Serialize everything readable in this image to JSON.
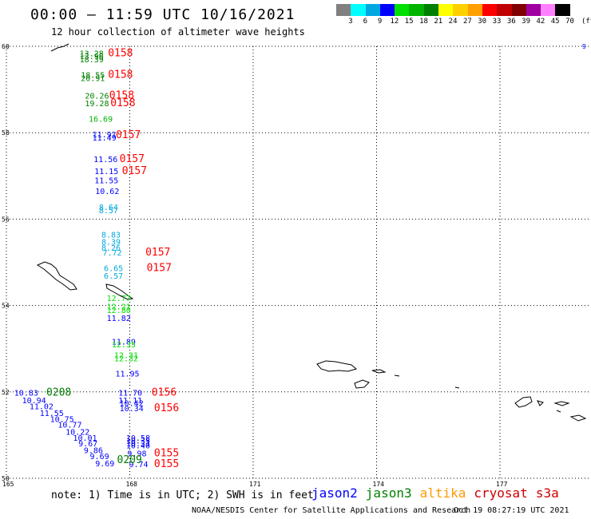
{
  "header": {
    "title": "00:00 — 11:59 UTC 10/16/2021",
    "subtitle": "12 hour collection of altimeter wave heights"
  },
  "legend": {
    "unit": "(ft)",
    "bins": [
      {
        "label": "3",
        "color": "#808080"
      },
      {
        "label": "6",
        "color": "#00ffff"
      },
      {
        "label": "9",
        "color": "#00a8e0"
      },
      {
        "label": "12",
        "color": "#0000ff"
      },
      {
        "label": "15",
        "color": "#00e000"
      },
      {
        "label": "18",
        "color": "#00b400"
      },
      {
        "label": "21",
        "color": "#008000"
      },
      {
        "label": "24",
        "color": "#ffff00"
      },
      {
        "label": "27",
        "color": "#ffd000"
      },
      {
        "label": "30",
        "color": "#ffa000"
      },
      {
        "label": "33",
        "color": "#ff0000"
      },
      {
        "label": "36",
        "color": "#c00000"
      },
      {
        "label": "39",
        "color": "#800000"
      },
      {
        "label": "42",
        "color": "#a000a0"
      },
      {
        "label": "45",
        "color": "#ff80ff"
      },
      {
        "label": "70",
        "color": "#000000"
      }
    ]
  },
  "map": {
    "lat_ticks": [
      "60",
      "58",
      "56",
      "54",
      "52",
      "50"
    ],
    "lon_ticks": [
      "165",
      "168",
      "171",
      "174",
      "177"
    ],
    "corner_label": "9"
  },
  "observations": [
    {
      "text": "13.28",
      "lon": 166.78,
      "lat": 59.77,
      "color": "#008000"
    },
    {
      "text": "13.96",
      "lon": 166.78,
      "lat": 59.7,
      "color": "#008000"
    },
    {
      "text": "18.39",
      "lon": 166.78,
      "lat": 59.63,
      "color": "#008000"
    },
    {
      "text": "18.55",
      "lon": 166.81,
      "lat": 59.27,
      "color": "#008000"
    },
    {
      "text": "20.91",
      "lon": 166.81,
      "lat": 59.2,
      "color": "#008000"
    },
    {
      "text": "20.26",
      "lon": 166.91,
      "lat": 58.79,
      "color": "#008000"
    },
    {
      "text": "19.28",
      "lon": 166.91,
      "lat": 58.61,
      "color": "#008000"
    },
    {
      "text": "16.69",
      "lon": 167.0,
      "lat": 58.25,
      "color": "#00b400"
    },
    {
      "text": "11.91",
      "lon": 167.09,
      "lat": 57.89,
      "color": "#0000ff"
    },
    {
      "text": "11.49",
      "lon": 167.09,
      "lat": 57.82,
      "color": "#0000ff"
    },
    {
      "text": "11.56",
      "lon": 167.12,
      "lat": 57.32,
      "color": "#0000ff"
    },
    {
      "text": "11.15",
      "lon": 167.14,
      "lat": 57.04,
      "color": "#0000ff"
    },
    {
      "text": "11.55",
      "lon": 167.14,
      "lat": 56.83,
      "color": "#0000ff"
    },
    {
      "text": "10.62",
      "lon": 167.16,
      "lat": 56.58,
      "color": "#0000ff"
    },
    {
      "text": "8.64",
      "lon": 167.25,
      "lat": 56.21,
      "color": "#00a8e0"
    },
    {
      "text": "8.57",
      "lon": 167.25,
      "lat": 56.14,
      "color": "#00a8e0"
    },
    {
      "text": "8.83",
      "lon": 167.31,
      "lat": 55.57,
      "color": "#00a8e0"
    },
    {
      "text": "8.39",
      "lon": 167.31,
      "lat": 55.41,
      "color": "#00a8e0"
    },
    {
      "text": "8.26",
      "lon": 167.31,
      "lat": 55.27,
      "color": "#00a8e0"
    },
    {
      "text": "7.72",
      "lon": 167.34,
      "lat": 55.16,
      "color": "#00a8e0"
    },
    {
      "text": "6.65",
      "lon": 167.37,
      "lat": 54.8,
      "color": "#00a8e0"
    },
    {
      "text": "6.57",
      "lon": 167.37,
      "lat": 54.62,
      "color": "#00a8e0"
    },
    {
      "text": "12.77",
      "lon": 167.44,
      "lat": 54.1,
      "color": "#00e000"
    },
    {
      "text": "12.21",
      "lon": 167.44,
      "lat": 53.91,
      "color": "#00e000"
    },
    {
      "text": "12.80",
      "lon": 167.44,
      "lat": 53.83,
      "color": "#00e000"
    },
    {
      "text": "11.82",
      "lon": 167.44,
      "lat": 53.64,
      "color": "#0000ff"
    },
    {
      "text": "11.89",
      "lon": 167.56,
      "lat": 53.1,
      "color": "#0000ff"
    },
    {
      "text": "12.35",
      "lon": 167.56,
      "lat": 53.03,
      "color": "#00e000"
    },
    {
      "text": "12.31",
      "lon": 167.62,
      "lat": 52.78,
      "color": "#00e000"
    },
    {
      "text": "12.32",
      "lon": 167.62,
      "lat": 52.71,
      "color": "#00e000"
    },
    {
      "text": "11.95",
      "lon": 167.65,
      "lat": 52.36,
      "color": "#0000ff"
    },
    {
      "text": "11.70",
      "lon": 167.72,
      "lat": 51.91,
      "color": "#0000ff"
    },
    {
      "text": "11.11",
      "lon": 167.72,
      "lat": 51.74,
      "color": "#0000ff"
    },
    {
      "text": "10.42",
      "lon": 167.75,
      "lat": 51.67,
      "color": "#0000ff"
    },
    {
      "text": "10.34",
      "lon": 167.75,
      "lat": 51.55,
      "color": "#0000ff"
    },
    {
      "text": "10.83",
      "lon": 165.19,
      "lat": 51.91,
      "color": "#0000ff"
    },
    {
      "text": "10.94",
      "lon": 165.38,
      "lat": 51.74,
      "color": "#0000ff"
    },
    {
      "text": "11.02",
      "lon": 165.56,
      "lat": 51.6,
      "color": "#0000ff"
    },
    {
      "text": "11.55",
      "lon": 165.81,
      "lat": 51.44,
      "color": "#0000ff"
    },
    {
      "text": "10.75",
      "lon": 166.06,
      "lat": 51.3,
      "color": "#0000ff"
    },
    {
      "text": "10.77",
      "lon": 166.25,
      "lat": 51.17,
      "color": "#0000ff"
    },
    {
      "text": "10.22",
      "lon": 166.44,
      "lat": 51.01,
      "color": "#0000ff"
    },
    {
      "text": "10.01",
      "lon": 166.62,
      "lat": 50.87,
      "color": "#0000ff"
    },
    {
      "text": "9.67",
      "lon": 166.75,
      "lat": 50.74,
      "color": "#0000ff"
    },
    {
      "text": "9.86",
      "lon": 166.88,
      "lat": 50.58,
      "color": "#0000ff"
    },
    {
      "text": "9.69",
      "lon": 167.03,
      "lat": 50.44,
      "color": "#0000ff"
    },
    {
      "text": "9.69",
      "lon": 167.16,
      "lat": 50.28,
      "color": "#0000ff"
    },
    {
      "text": "10.58",
      "lon": 167.91,
      "lat": 50.87,
      "color": "#0000ff"
    },
    {
      "text": "10.35",
      "lon": 167.91,
      "lat": 50.8,
      "color": "#0000ff"
    },
    {
      "text": "10.31",
      "lon": 167.91,
      "lat": 50.74,
      "color": "#0000ff"
    },
    {
      "text": "10.40",
      "lon": 167.91,
      "lat": 50.69,
      "color": "#0000ff"
    },
    {
      "text": "9.98",
      "lon": 167.94,
      "lat": 50.51,
      "color": "#0000ff"
    },
    {
      "text": "9.74",
      "lon": 167.98,
      "lat": 50.26,
      "color": "#0000ff"
    }
  ],
  "pass_times": [
    {
      "text": "0158",
      "lon": 167.47,
      "lat": 59.77,
      "color": "#ff0000"
    },
    {
      "text": "0158",
      "lon": 167.47,
      "lat": 59.27,
      "color": "#ff0000"
    },
    {
      "text": "0158",
      "lon": 167.5,
      "lat": 58.79,
      "color": "#ff0000"
    },
    {
      "text": "0158",
      "lon": 167.53,
      "lat": 58.61,
      "color": "#ff0000"
    },
    {
      "text": "0157",
      "lon": 167.66,
      "lat": 57.87,
      "color": "#ff0000"
    },
    {
      "text": "0157",
      "lon": 167.75,
      "lat": 57.32,
      "color": "#ff0000"
    },
    {
      "text": "0157",
      "lon": 167.81,
      "lat": 57.04,
      "color": "#ff0000"
    },
    {
      "text": "0157",
      "lon": 168.38,
      "lat": 55.16,
      "color": "#ff0000"
    },
    {
      "text": "0157",
      "lon": 168.41,
      "lat": 54.8,
      "color": "#ff0000"
    },
    {
      "text": "0156",
      "lon": 168.53,
      "lat": 51.91,
      "color": "#ff0000"
    },
    {
      "text": "0156",
      "lon": 168.59,
      "lat": 51.55,
      "color": "#ff0000"
    },
    {
      "text": "0155",
      "lon": 168.59,
      "lat": 50.51,
      "color": "#ff0000"
    },
    {
      "text": "0155",
      "lon": 168.59,
      "lat": 50.26,
      "color": "#ff0000"
    },
    {
      "text": "0208",
      "lon": 165.97,
      "lat": 51.91,
      "color": "#008000"
    },
    {
      "text": "0209",
      "lon": 167.69,
      "lat": 50.35,
      "color": "#008000"
    }
  ],
  "footer": {
    "note": "note: 1) Time is in UTC; 2) SWH is in feet",
    "satellites": [
      {
        "name": "jason2",
        "color": "#0000ff"
      },
      {
        "name": "jason3",
        "color": "#008000"
      },
      {
        "name": "altika",
        "color": "#ff9900"
      },
      {
        "name": "cryosat",
        "color": "#cc0000"
      },
      {
        "name": "s3a",
        "color": "#cc0000"
      }
    ],
    "credit": "NOAA/NESDIS Center for Satellite Applications and Research",
    "generated": "Oct 19 08:27:19 UTC 2021"
  }
}
